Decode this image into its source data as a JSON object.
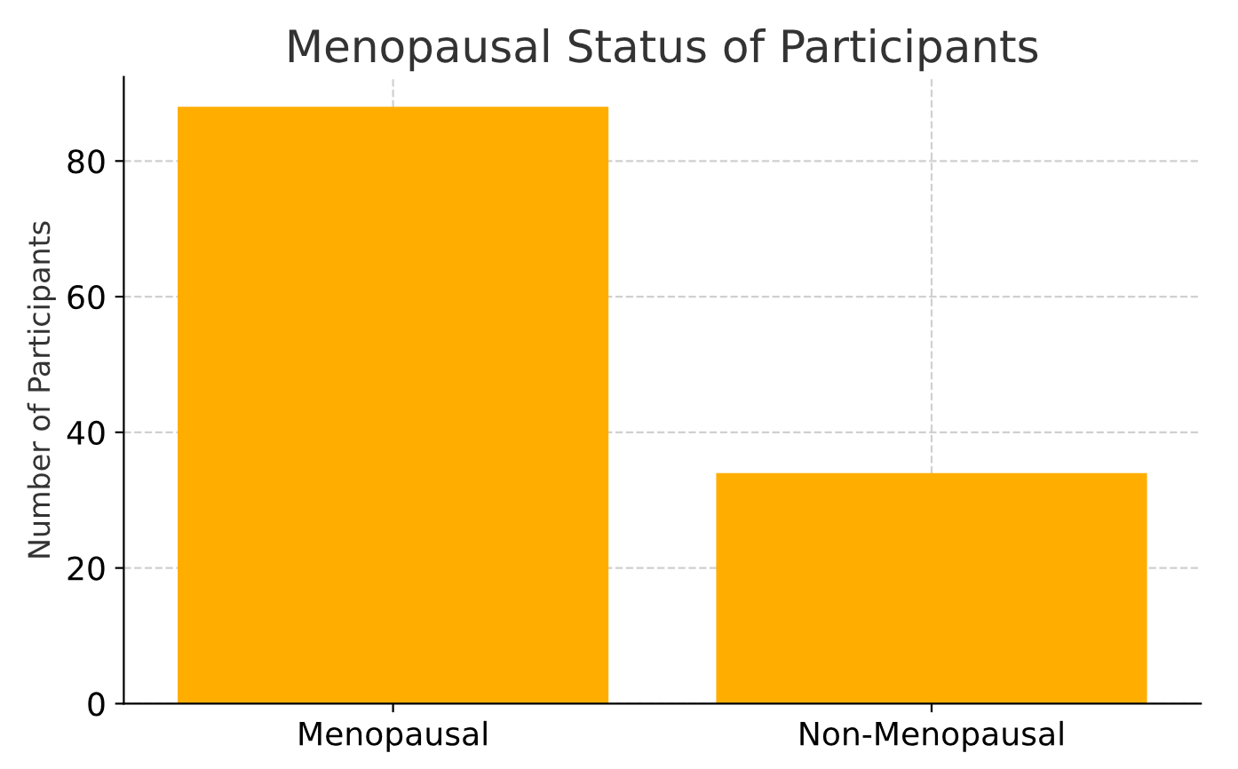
{
  "chart_data": {
    "type": "bar",
    "title": "Menopausal Status of Participants",
    "ylabel": "Number of Participants",
    "categories": [
      "Menopausal",
      "Non-Menopausal"
    ],
    "values": [
      88,
      34
    ],
    "color": "#ffae00",
    "ylim": [
      0,
      92.4
    ],
    "yticks": [
      0,
      20,
      40,
      60,
      80
    ],
    "grid": true,
    "line_style": "dashed"
  }
}
